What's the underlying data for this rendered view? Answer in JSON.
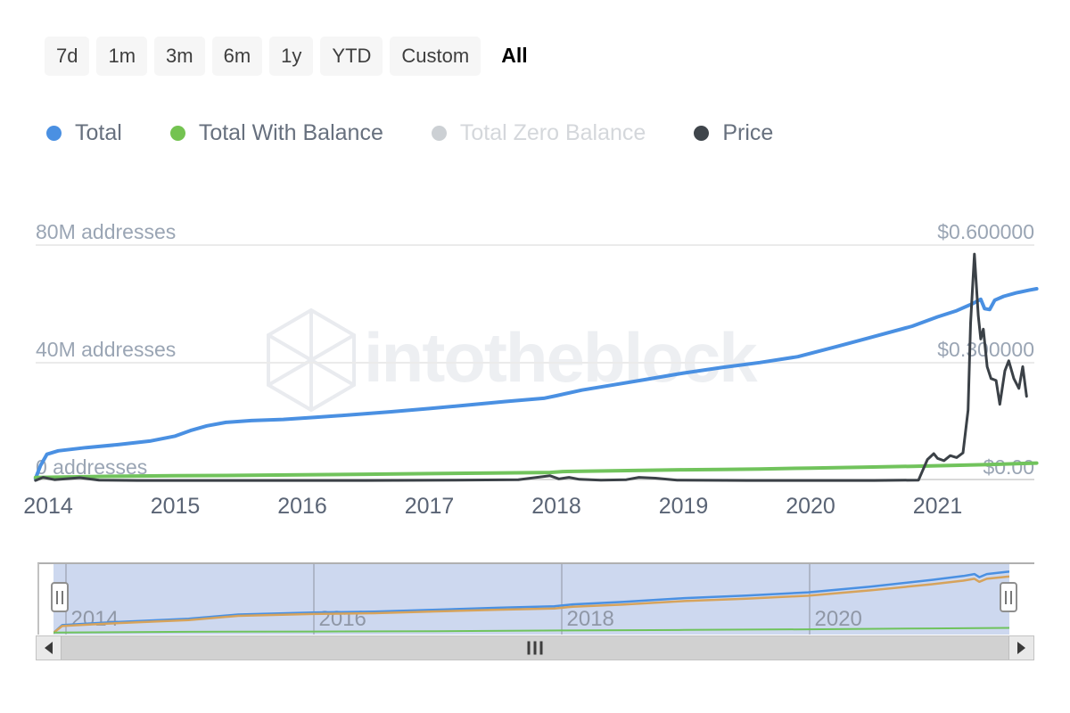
{
  "toolbar": {
    "buttons": [
      {
        "label": "7d",
        "selected": false
      },
      {
        "label": "1m",
        "selected": false
      },
      {
        "label": "3m",
        "selected": false
      },
      {
        "label": "6m",
        "selected": false
      },
      {
        "label": "1y",
        "selected": false
      },
      {
        "label": "YTD",
        "selected": false
      },
      {
        "label": "Custom",
        "selected": false
      },
      {
        "label": "All",
        "selected": true
      }
    ]
  },
  "legend": {
    "items": [
      {
        "label": "Total",
        "color": "#4a90e2",
        "enabled": true
      },
      {
        "label": "Total With Balance",
        "color": "#74c351",
        "enabled": true
      },
      {
        "label": "Total Zero Balance",
        "color": "#ccd0d4",
        "enabled": false
      },
      {
        "label": "Price",
        "color": "#3f454b",
        "enabled": true
      }
    ]
  },
  "watermark": {
    "text": "intotheblock",
    "logo_icon": "intotheblock-cube-icon",
    "color": "#edeff2"
  },
  "chart_data": {
    "type": "line",
    "title": "",
    "x_ticks": [
      2014,
      2015,
      2016,
      2017,
      2018,
      2019,
      2020,
      2021
    ],
    "left_axis": {
      "unit": "addresses (millions)",
      "min": 0,
      "max": 80,
      "gridlines": [
        "80M addresses",
        "40M addresses",
        "0 addresses"
      ]
    },
    "right_axis": {
      "unit": "USD",
      "min": 0,
      "max": 0.6,
      "gridlines": [
        "$0.600000",
        "$0.300000",
        "$0.00"
      ]
    },
    "grid": true,
    "legend_position": "top",
    "series": [
      {
        "name": "Total",
        "axis": "left",
        "color": "#4a90e2",
        "stroke_width": 4,
        "points": [
          [
            2013.9,
            0
          ],
          [
            2013.94,
            4.5
          ],
          [
            2013.99,
            8.3
          ],
          [
            2014.08,
            9.5
          ],
          [
            2014.3,
            10.6
          ],
          [
            2014.55,
            11.6
          ],
          [
            2014.8,
            12.8
          ],
          [
            2015.0,
            14.5
          ],
          [
            2015.12,
            16.4
          ],
          [
            2015.25,
            18.0
          ],
          [
            2015.4,
            19.2
          ],
          [
            2015.6,
            19.8
          ],
          [
            2015.85,
            20.2
          ],
          [
            2016.1,
            20.9
          ],
          [
            2016.4,
            21.8
          ],
          [
            2016.7,
            22.8
          ],
          [
            2017.0,
            23.9
          ],
          [
            2017.3,
            25.1
          ],
          [
            2017.6,
            26.3
          ],
          [
            2017.9,
            27.4
          ],
          [
            2018.0,
            28.3
          ],
          [
            2018.2,
            30.2
          ],
          [
            2018.45,
            32.0
          ],
          [
            2018.7,
            33.8
          ],
          [
            2019.0,
            36.0
          ],
          [
            2019.3,
            37.9
          ],
          [
            2019.6,
            39.6
          ],
          [
            2019.9,
            41.6
          ],
          [
            2020.2,
            45.0
          ],
          [
            2020.5,
            48.5
          ],
          [
            2020.8,
            52.0
          ],
          [
            2021.0,
            55.2
          ],
          [
            2021.15,
            57.3
          ],
          [
            2021.28,
            59.8
          ],
          [
            2021.34,
            61.2
          ],
          [
            2021.37,
            58.0
          ],
          [
            2021.41,
            57.7
          ],
          [
            2021.45,
            60.9
          ],
          [
            2021.52,
            62.2
          ],
          [
            2021.62,
            63.4
          ],
          [
            2021.72,
            64.3
          ],
          [
            2021.78,
            64.8
          ]
        ]
      },
      {
        "name": "Total With Balance",
        "axis": "left",
        "color": "#71c35c",
        "stroke_width": 4,
        "points": [
          [
            2013.9,
            0.4
          ],
          [
            2014.5,
            0.8
          ],
          [
            2015.0,
            1.0
          ],
          [
            2015.5,
            1.1
          ],
          [
            2016.0,
            1.3
          ],
          [
            2016.5,
            1.5
          ],
          [
            2017.0,
            1.7
          ],
          [
            2017.5,
            1.9
          ],
          [
            2017.95,
            2.1
          ],
          [
            2018.05,
            2.4
          ],
          [
            2018.5,
            2.7
          ],
          [
            2019.0,
            3.0
          ],
          [
            2019.3,
            3.1
          ],
          [
            2019.6,
            3.3
          ],
          [
            2020.0,
            3.6
          ],
          [
            2020.4,
            3.9
          ],
          [
            2020.8,
            4.2
          ],
          [
            2021.1,
            4.5
          ],
          [
            2021.4,
            4.8
          ],
          [
            2021.78,
            5.3
          ]
        ]
      },
      {
        "name": "Total Zero Balance",
        "axis": "left",
        "color": "#ccd0d4",
        "stroke_width": 4,
        "visible": false,
        "points": []
      },
      {
        "name": "Price",
        "axis": "right",
        "color": "#3b4147",
        "stroke_width": 3,
        "points": [
          [
            2013.9,
            0.002
          ],
          [
            2013.96,
            0.01
          ],
          [
            2014.05,
            0.004
          ],
          [
            2014.25,
            0.009
          ],
          [
            2014.4,
            0.003
          ],
          [
            2014.7,
            0.002
          ],
          [
            2015.5,
            0.002
          ],
          [
            2016.5,
            0.002
          ],
          [
            2017.2,
            0.003
          ],
          [
            2017.7,
            0.004
          ],
          [
            2017.95,
            0.014
          ],
          [
            2018.02,
            0.006
          ],
          [
            2018.1,
            0.01
          ],
          [
            2018.18,
            0.005
          ],
          [
            2018.35,
            0.003
          ],
          [
            2018.55,
            0.004
          ],
          [
            2018.65,
            0.01
          ],
          [
            2018.78,
            0.008
          ],
          [
            2018.95,
            0.003
          ],
          [
            2019.5,
            0.002
          ],
          [
            2020.0,
            0.002
          ],
          [
            2020.5,
            0.002
          ],
          [
            2020.85,
            0.003
          ],
          [
            2020.92,
            0.055
          ],
          [
            2020.97,
            0.07
          ],
          [
            2021.0,
            0.058
          ],
          [
            2021.05,
            0.052
          ],
          [
            2021.1,
            0.065
          ],
          [
            2021.15,
            0.06
          ],
          [
            2021.2,
            0.072
          ],
          [
            2021.24,
            0.18
          ],
          [
            2021.26,
            0.4
          ],
          [
            2021.29,
            0.575
          ],
          [
            2021.32,
            0.42
          ],
          [
            2021.34,
            0.36
          ],
          [
            2021.36,
            0.385
          ],
          [
            2021.39,
            0.29
          ],
          [
            2021.42,
            0.26
          ],
          [
            2021.46,
            0.255
          ],
          [
            2021.49,
            0.195
          ],
          [
            2021.53,
            0.28
          ],
          [
            2021.56,
            0.305
          ],
          [
            2021.6,
            0.26
          ],
          [
            2021.64,
            0.235
          ],
          [
            2021.67,
            0.29
          ],
          [
            2021.7,
            0.215
          ]
        ]
      }
    ]
  },
  "navigator": {
    "selection_color": "#cdd8ef",
    "x_labels": [
      2014,
      2016,
      2018,
      2020
    ],
    "series": [
      {
        "name": "Total",
        "color": "#4a90e2",
        "stroke_width": 2.5,
        "points": [
          [
            2013.91,
            0
          ],
          [
            2013.98,
            8
          ],
          [
            2014.3,
            10.5
          ],
          [
            2015.0,
            14.5
          ],
          [
            2015.4,
            19
          ],
          [
            2016.0,
            21
          ],
          [
            2016.5,
            22
          ],
          [
            2017.0,
            24
          ],
          [
            2017.5,
            26
          ],
          [
            2017.95,
            27.5
          ],
          [
            2018.1,
            29.5
          ],
          [
            2018.5,
            32
          ],
          [
            2019.0,
            36
          ],
          [
            2019.5,
            38.7
          ],
          [
            2020.0,
            42
          ],
          [
            2020.5,
            48
          ],
          [
            2021.0,
            55
          ],
          [
            2021.25,
            59
          ],
          [
            2021.34,
            61
          ],
          [
            2021.38,
            57.8
          ],
          [
            2021.44,
            61
          ],
          [
            2021.6,
            63.3
          ],
          [
            2021.78,
            65
          ]
        ]
      },
      {
        "name": "Total Zero Balance",
        "color": "#d6a35c",
        "stroke_width": 2.5,
        "points": [
          [
            2013.91,
            0
          ],
          [
            2013.98,
            7
          ],
          [
            2014.3,
            9.3
          ],
          [
            2015.0,
            13.2
          ],
          [
            2015.4,
            17.6
          ],
          [
            2016.0,
            19.5
          ],
          [
            2016.5,
            20.4
          ],
          [
            2017.0,
            22.2
          ],
          [
            2017.5,
            24.0
          ],
          [
            2017.95,
            25.3
          ],
          [
            2018.1,
            27.1
          ],
          [
            2018.5,
            29.3
          ],
          [
            2019.0,
            33.0
          ],
          [
            2019.5,
            35.5
          ],
          [
            2020.0,
            38.5
          ],
          [
            2020.5,
            44.1
          ],
          [
            2021.0,
            50.5
          ],
          [
            2021.25,
            54.2
          ],
          [
            2021.34,
            56.1
          ],
          [
            2021.38,
            53.0
          ],
          [
            2021.44,
            56.1
          ],
          [
            2021.6,
            58.2
          ],
          [
            2021.78,
            59.8
          ]
        ]
      },
      {
        "name": "Total With Balance",
        "color": "#6fc35c",
        "stroke_width": 2,
        "points": [
          [
            2013.91,
            0.3
          ],
          [
            2015.0,
            1.0
          ],
          [
            2016.0,
            1.3
          ],
          [
            2017.0,
            1.7
          ],
          [
            2018.0,
            2.4
          ],
          [
            2019.0,
            3.0
          ],
          [
            2020.0,
            3.6
          ],
          [
            2021.0,
            4.5
          ],
          [
            2021.78,
            5.3
          ]
        ]
      }
    ]
  },
  "scrollbar": {
    "left_icon": "scroll-left-arrow",
    "right_icon": "scroll-right-arrow",
    "grip_icon": "scroll-grip"
  }
}
